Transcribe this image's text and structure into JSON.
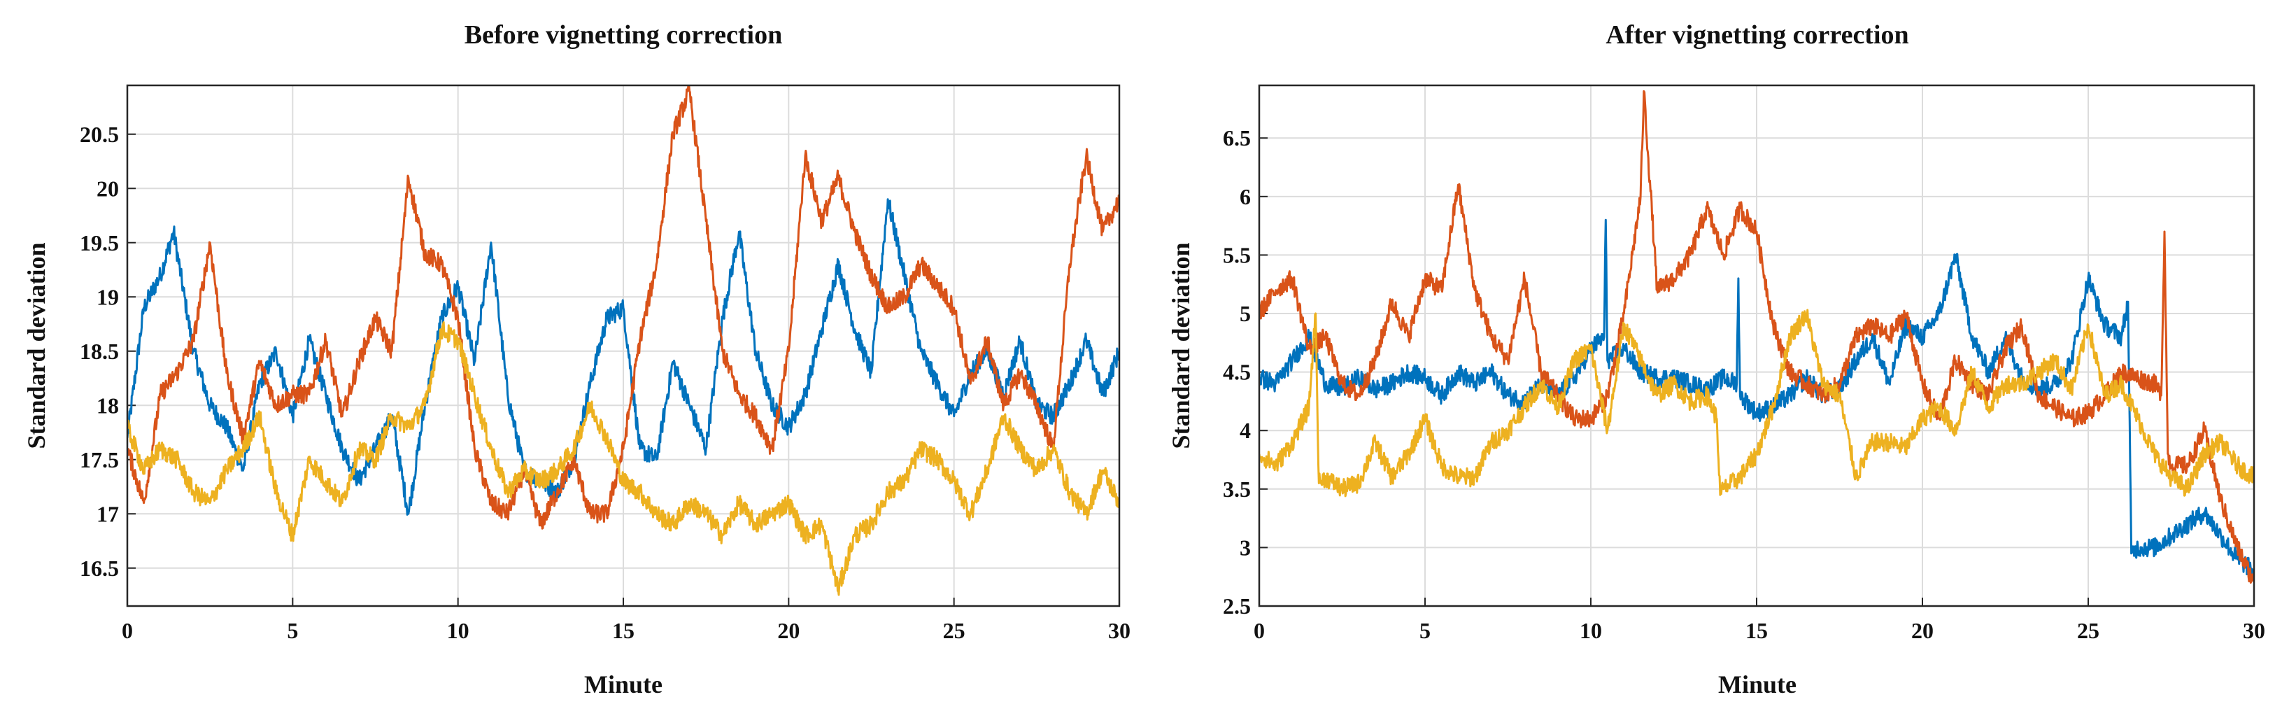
{
  "chart_data": [
    {
      "type": "line",
      "title": "Before vignetting correction",
      "xlabel": "Minute",
      "ylabel": "Standard deviation",
      "xlim": [
        0,
        30
      ],
      "ylim": [
        16.15,
        20.95
      ],
      "xticks": [
        0,
        5,
        10,
        15,
        20,
        25,
        30
      ],
      "xtick_labels": [
        "0",
        "5",
        "10",
        "15",
        "20",
        "25",
        "30"
      ],
      "yticks": [
        16.5,
        17,
        17.5,
        18,
        18.5,
        19,
        19.5,
        20,
        20.5
      ],
      "ytick_labels": [
        "16.5",
        "17",
        "17.5",
        "18",
        "18.5",
        "19",
        "19.5",
        "20",
        "20.5"
      ],
      "grid": true,
      "series": [
        {
          "name": "blue",
          "color": "#0072BD",
          "x": [
            0,
            0.5,
            1.0,
            1.4,
            2.0,
            2.5,
            3.0,
            3.5,
            4.0,
            4.5,
            5.0,
            5.5,
            6.0,
            6.5,
            7.0,
            7.5,
            8.0,
            8.5,
            9.0,
            9.5,
            10.0,
            10.5,
            11.0,
            11.5,
            12.0,
            12.5,
            13.0,
            13.5,
            14.0,
            14.5,
            15.0,
            15.5,
            16.0,
            16.5,
            17.0,
            17.5,
            18.0,
            18.5,
            19.0,
            19.5,
            20.0,
            20.5,
            21.0,
            21.5,
            22.0,
            22.5,
            23.0,
            23.5,
            24.0,
            24.5,
            25.0,
            25.5,
            26.0,
            26.5,
            27.0,
            27.5,
            28.0,
            28.5,
            29.0,
            29.5,
            30.0
          ],
          "values": [
            17.7,
            18.9,
            19.2,
            19.6,
            18.5,
            18.0,
            17.8,
            17.4,
            18.2,
            18.5,
            17.9,
            18.6,
            18.1,
            17.6,
            17.3,
            17.6,
            17.9,
            17.0,
            18.0,
            18.8,
            19.1,
            18.4,
            19.5,
            18.1,
            17.4,
            17.3,
            17.2,
            17.5,
            18.2,
            18.8,
            18.9,
            17.6,
            17.5,
            18.4,
            18.0,
            17.6,
            18.8,
            19.6,
            18.5,
            18.0,
            17.8,
            18.1,
            18.7,
            19.3,
            18.7,
            18.3,
            19.9,
            19.2,
            18.5,
            18.2,
            17.9,
            18.3,
            18.5,
            18.1,
            18.6,
            18.0,
            17.9,
            18.2,
            18.6,
            18.1,
            18.5
          ]
        },
        {
          "name": "orange",
          "color": "#D95319",
          "x": [
            0,
            0.5,
            1.0,
            1.5,
            2.0,
            2.5,
            3.0,
            3.5,
            4.0,
            4.5,
            5.0,
            5.5,
            6.0,
            6.5,
            7.0,
            7.5,
            8.0,
            8.5,
            9.0,
            9.5,
            10.0,
            10.5,
            11.0,
            11.5,
            12.0,
            12.5,
            13.0,
            13.5,
            14.0,
            14.5,
            15.0,
            15.5,
            16.0,
            16.5,
            17.0,
            17.5,
            18.0,
            18.5,
            19.0,
            19.5,
            20.0,
            20.5,
            21.0,
            21.5,
            22.0,
            22.5,
            23.0,
            23.5,
            24.0,
            24.5,
            25.0,
            25.5,
            26.0,
            26.5,
            27.0,
            27.5,
            28.0,
            28.5,
            29.0,
            29.5,
            30.0
          ],
          "values": [
            17.6,
            17.1,
            18.1,
            18.3,
            18.6,
            19.5,
            18.3,
            17.7,
            18.4,
            18.0,
            18.1,
            18.1,
            18.6,
            17.9,
            18.4,
            18.8,
            18.5,
            20.1,
            19.4,
            19.3,
            18.8,
            17.6,
            17.1,
            17.0,
            17.4,
            16.9,
            17.2,
            17.5,
            17.0,
            17.0,
            17.6,
            18.6,
            19.3,
            20.5,
            20.9,
            19.7,
            18.5,
            18.1,
            17.9,
            17.6,
            18.5,
            20.3,
            19.7,
            20.1,
            19.6,
            19.2,
            18.9,
            19.0,
            19.3,
            19.1,
            18.9,
            18.2,
            18.6,
            18.0,
            18.3,
            18.0,
            17.6,
            19.3,
            20.3,
            19.6,
            19.9
          ]
        },
        {
          "name": "yellow",
          "color": "#EDB120",
          "x": [
            0,
            0.5,
            1.0,
            1.5,
            2.0,
            2.5,
            3.0,
            3.5,
            4.0,
            4.5,
            5.0,
            5.5,
            6.0,
            6.5,
            7.0,
            7.5,
            8.0,
            8.5,
            9.0,
            9.5,
            10.0,
            10.5,
            11.0,
            11.5,
            12.0,
            12.5,
            13.0,
            13.5,
            14.0,
            14.5,
            15.0,
            15.5,
            16.0,
            16.5,
            17.0,
            17.5,
            18.0,
            18.5,
            19.0,
            19.5,
            20.0,
            20.5,
            21.0,
            21.5,
            22.0,
            22.5,
            23.0,
            23.5,
            24.0,
            24.5,
            25.0,
            25.5,
            26.0,
            26.5,
            27.0,
            27.5,
            28.0,
            28.5,
            29.0,
            29.5,
            30.0
          ],
          "values": [
            17.8,
            17.4,
            17.6,
            17.5,
            17.2,
            17.1,
            17.4,
            17.6,
            17.9,
            17.2,
            16.8,
            17.5,
            17.3,
            17.1,
            17.6,
            17.5,
            17.9,
            17.8,
            18.0,
            18.7,
            18.6,
            18.1,
            17.6,
            17.2,
            17.4,
            17.3,
            17.4,
            17.6,
            18.0,
            17.7,
            17.3,
            17.2,
            17.0,
            16.9,
            17.1,
            17.0,
            16.8,
            17.1,
            16.9,
            17.0,
            17.1,
            16.8,
            16.9,
            16.3,
            16.8,
            16.9,
            17.2,
            17.3,
            17.6,
            17.5,
            17.3,
            17.0,
            17.4,
            17.9,
            17.6,
            17.4,
            17.6,
            17.2,
            17.0,
            17.4,
            17.1
          ]
        }
      ]
    },
    {
      "type": "line",
      "title": "After vignetting correction",
      "xlabel": "Minute",
      "ylabel": "Standard deviation",
      "xlim": [
        0,
        30
      ],
      "ylim": [
        2.5,
        6.95
      ],
      "xticks": [
        0,
        5,
        10,
        15,
        20,
        25,
        30
      ],
      "xtick_labels": [
        "0",
        "5",
        "10",
        "15",
        "20",
        "25",
        "30"
      ],
      "yticks": [
        2.5,
        3,
        3.5,
        4,
        4.5,
        5,
        5.5,
        6,
        6.5
      ],
      "ytick_labels": [
        "2.5",
        "3",
        "3.5",
        "4",
        "4.5",
        "5",
        "5.5",
        "6",
        "6.5"
      ],
      "grid": true,
      "series": [
        {
          "name": "blue",
          "color": "#0072BD",
          "x": [
            0,
            0.5,
            1.0,
            1.5,
            2.0,
            2.5,
            3.0,
            3.5,
            4.0,
            4.5,
            5.0,
            5.5,
            6.0,
            6.5,
            7.0,
            7.5,
            8.0,
            8.5,
            9.0,
            9.5,
            10.0,
            10.4,
            10.45,
            10.5,
            11.0,
            11.5,
            12.0,
            12.5,
            13.0,
            13.5,
            14.0,
            14.4,
            14.45,
            14.5,
            15.0,
            15.5,
            16.0,
            16.5,
            17.0,
            17.5,
            18.0,
            18.5,
            19.0,
            19.5,
            20.0,
            20.5,
            21.0,
            21.5,
            22.0,
            22.5,
            23.0,
            23.5,
            24.0,
            24.5,
            25.0,
            25.5,
            26.0,
            26.2,
            26.3,
            26.5,
            27.0,
            27.5,
            28.0,
            28.5,
            29.0,
            29.5,
            30.0
          ],
          "values": [
            4.45,
            4.4,
            4.6,
            4.8,
            4.4,
            4.35,
            4.45,
            4.35,
            4.4,
            4.5,
            4.45,
            4.3,
            4.5,
            4.4,
            4.5,
            4.3,
            4.25,
            4.4,
            4.3,
            4.45,
            4.7,
            4.8,
            5.8,
            4.6,
            4.7,
            4.5,
            4.45,
            4.45,
            4.4,
            4.35,
            4.45,
            4.4,
            5.3,
            4.3,
            4.15,
            4.2,
            4.3,
            4.45,
            4.3,
            4.35,
            4.6,
            4.8,
            4.4,
            4.9,
            4.8,
            5.0,
            5.5,
            4.8,
            4.5,
            4.8,
            4.45,
            4.35,
            4.4,
            4.6,
            5.3,
            4.9,
            4.8,
            5.1,
            2.95,
            3.0,
            3.0,
            3.1,
            3.2,
            3.3,
            3.1,
            2.9,
            2.8
          ]
        },
        {
          "name": "orange",
          "color": "#D95319",
          "x": [
            0,
            0.5,
            1.0,
            1.5,
            2.0,
            2.5,
            3.0,
            3.5,
            4.0,
            4.5,
            5.0,
            5.5,
            6.0,
            6.5,
            7.0,
            7.5,
            8.0,
            8.5,
            9.0,
            9.5,
            10.0,
            10.5,
            11.0,
            11.5,
            11.6,
            12.0,
            12.5,
            13.0,
            13.5,
            14.0,
            14.5,
            15.0,
            15.5,
            16.0,
            16.5,
            17.0,
            17.5,
            18.0,
            18.5,
            19.0,
            19.5,
            20.0,
            20.5,
            21.0,
            21.5,
            22.0,
            22.5,
            23.0,
            23.5,
            24.0,
            24.5,
            25.0,
            25.5,
            26.0,
            26.5,
            27.0,
            27.2,
            27.3,
            27.4,
            27.5,
            28.0,
            28.5,
            29.0,
            29.5,
            30.0
          ],
          "values": [
            5.0,
            5.2,
            5.3,
            4.7,
            4.8,
            4.4,
            4.3,
            4.6,
            5.1,
            4.8,
            5.3,
            5.2,
            6.1,
            5.2,
            4.8,
            4.6,
            5.3,
            4.5,
            4.3,
            4.1,
            4.1,
            4.3,
            5.0,
            6.0,
            6.9,
            5.2,
            5.3,
            5.5,
            5.9,
            5.5,
            5.9,
            5.7,
            4.9,
            4.5,
            4.4,
            4.3,
            4.4,
            4.8,
            4.9,
            4.8,
            5.0,
            4.4,
            4.1,
            4.6,
            4.4,
            4.3,
            4.7,
            4.9,
            4.3,
            4.2,
            4.1,
            4.15,
            4.3,
            4.5,
            4.45,
            4.4,
            4.3,
            5.7,
            3.8,
            3.7,
            3.7,
            4.0,
            3.4,
            3.0,
            2.7
          ]
        },
        {
          "name": "yellow",
          "color": "#EDB120",
          "x": [
            0,
            0.5,
            1.0,
            1.5,
            1.7,
            1.8,
            2.0,
            2.5,
            3.0,
            3.5,
            4.0,
            4.5,
            5.0,
            5.5,
            6.0,
            6.5,
            7.0,
            7.5,
            8.0,
            8.5,
            9.0,
            9.5,
            10.0,
            10.5,
            11.0,
            11.5,
            12.0,
            12.5,
            13.0,
            13.5,
            13.8,
            13.9,
            14.0,
            14.5,
            15.0,
            15.5,
            16.0,
            16.5,
            17.0,
            17.5,
            18.0,
            18.5,
            19.0,
            19.5,
            20.0,
            20.5,
            21.0,
            21.5,
            22.0,
            22.5,
            23.0,
            23.5,
            24.0,
            24.5,
            25.0,
            25.5,
            26.0,
            26.5,
            27.0,
            27.5,
            28.0,
            28.5,
            29.0,
            29.5,
            30.0
          ],
          "values": [
            3.8,
            3.7,
            3.9,
            4.2,
            5.0,
            3.55,
            3.6,
            3.5,
            3.55,
            3.9,
            3.6,
            3.8,
            4.1,
            3.7,
            3.6,
            3.6,
            3.9,
            4.0,
            4.2,
            4.4,
            4.2,
            4.6,
            4.7,
            4.0,
            4.9,
            4.6,
            4.3,
            4.4,
            4.25,
            4.3,
            4.1,
            3.45,
            3.5,
            3.6,
            3.8,
            4.2,
            4.8,
            5.0,
            4.4,
            4.3,
            3.6,
            3.9,
            3.9,
            3.85,
            4.1,
            4.2,
            4.0,
            4.5,
            4.2,
            4.4,
            4.4,
            4.5,
            4.6,
            4.35,
            4.9,
            4.3,
            4.4,
            4.1,
            3.8,
            3.6,
            3.5,
            3.8,
            3.9,
            3.7,
            3.6
          ]
        }
      ]
    }
  ]
}
